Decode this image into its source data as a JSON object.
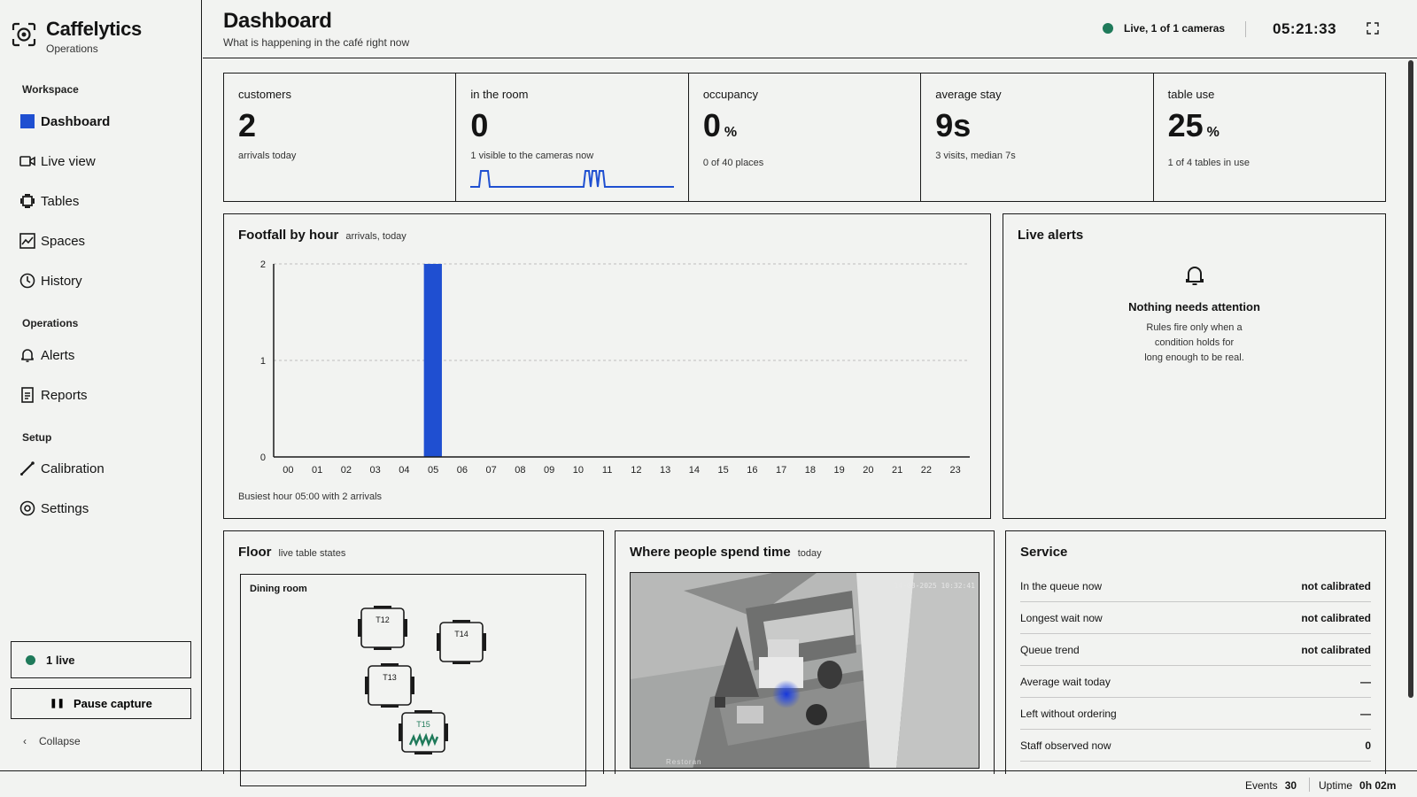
{
  "brand": {
    "name": "Caffelytics",
    "subtitle": "Operations"
  },
  "nav": {
    "workspace_label": "Workspace",
    "operations_label": "Operations",
    "setup_label": "Setup",
    "items": [
      {
        "label": "Dashboard",
        "icon": "dashboard-icon",
        "active": true
      },
      {
        "label": "Live view",
        "icon": "camera-icon"
      },
      {
        "label": "Tables",
        "icon": "table-icon"
      },
      {
        "label": "Spaces",
        "icon": "chart-line-icon"
      },
      {
        "label": "History",
        "icon": "clock-icon"
      },
      {
        "label": "Alerts",
        "icon": "bell-icon"
      },
      {
        "label": "Reports",
        "icon": "document-icon"
      },
      {
        "label": "Calibration",
        "icon": "pen-icon"
      },
      {
        "label": "Settings",
        "icon": "settings-icon"
      }
    ],
    "live_count": "1 live",
    "pause_label": "Pause capture",
    "collapse_label": "Collapse"
  },
  "header": {
    "title": "Dashboard",
    "subtitle": "What is happening in the café right now",
    "live_status": "Live, 1 of 1 cameras",
    "clock": "05:21:33"
  },
  "kpis": [
    {
      "label": "customers",
      "value": "2",
      "unit": "",
      "sub": "arrivals today"
    },
    {
      "label": "in the room",
      "value": "0",
      "unit": "",
      "sub": "1 visible to the cameras now"
    },
    {
      "label": "occupancy",
      "value": "0",
      "unit": "%",
      "sub": "0 of 40 places"
    },
    {
      "label": "average stay",
      "value": "9s",
      "unit": "",
      "sub": "3 visits, median 7s"
    },
    {
      "label": "table use",
      "value": "25",
      "unit": "%",
      "sub": "1 of 4 tables in use"
    }
  ],
  "footfall": {
    "title": "Footfall by hour",
    "subtitle": "arrivals, today",
    "footnote": "Busiest hour 05:00 with 2 arrivals"
  },
  "chart_data": {
    "type": "bar",
    "title": "Footfall by hour",
    "categories": [
      "00",
      "01",
      "02",
      "03",
      "04",
      "05",
      "06",
      "07",
      "08",
      "09",
      "10",
      "11",
      "12",
      "13",
      "14",
      "15",
      "16",
      "17",
      "18",
      "19",
      "20",
      "21",
      "22",
      "23"
    ],
    "values": [
      0,
      0,
      0,
      0,
      0,
      2,
      0,
      0,
      0,
      0,
      0,
      0,
      0,
      0,
      0,
      0,
      0,
      0,
      0,
      0,
      0,
      0,
      0,
      0
    ],
    "yticks": [
      "0",
      "1",
      "2"
    ],
    "ylim": [
      0,
      2
    ],
    "grid": true,
    "bar_color": "#1f4fd1"
  },
  "alerts": {
    "title": "Live alerts",
    "empty_title": "Nothing needs attention",
    "empty_text_1": "Rules fire only when a",
    "empty_text_2": "condition holds for",
    "empty_text_3": "long enough to be real."
  },
  "floor": {
    "title": "Floor",
    "subtitle": "live table states",
    "room_label": "Dining room",
    "tables": [
      {
        "name": "T12",
        "occupied": false
      },
      {
        "name": "T14",
        "occupied": false
      },
      {
        "name": "T13",
        "occupied": false
      },
      {
        "name": "T15",
        "occupied": true
      }
    ]
  },
  "heatmap": {
    "title": "Where people spend time",
    "subtitle": "today",
    "timestamp": "14-08-2025 10:32:41",
    "watermark": "Restoran"
  },
  "service": {
    "title": "Service",
    "rows": [
      {
        "label": "In the queue now",
        "value": "not calibrated"
      },
      {
        "label": "Longest wait now",
        "value": "not calibrated"
      },
      {
        "label": "Queue trend",
        "value": "not calibrated"
      },
      {
        "label": "Average wait today",
        "value": "—"
      },
      {
        "label": "Left without ordering",
        "value": "—"
      },
      {
        "label": "Staff observed now",
        "value": "0"
      }
    ]
  },
  "footer": {
    "events_label": "Events",
    "events_value": "30",
    "uptime_label": "Uptime",
    "uptime_value": "0h 02m"
  },
  "colors": {
    "accent": "#1f4fd1",
    "live": "#1f7a5a",
    "occupied": "#1f7a5a"
  }
}
